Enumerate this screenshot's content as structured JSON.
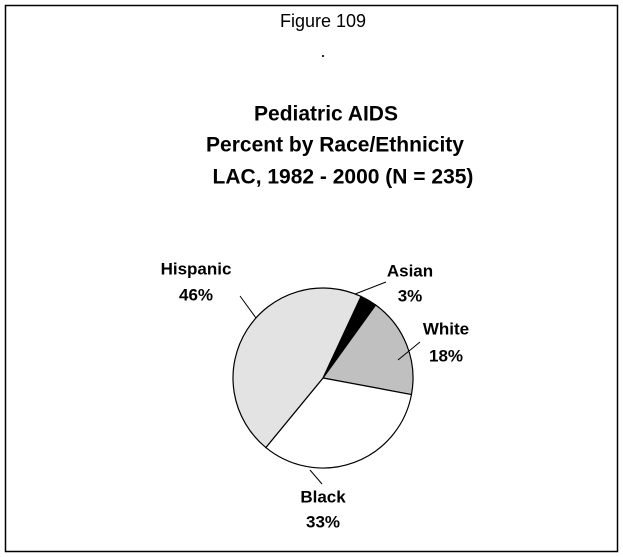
{
  "chart_data": {
    "type": "pie",
    "figure_label": "Figure 109",
    "note": ".",
    "title": [
      "Pediatric AIDS",
      "Percent by Race/Ethnicity",
      "LAC, 1982 - 2000  (N = 235)"
    ],
    "categories": [
      "Asian",
      "White",
      "Black",
      "Hispanic"
    ],
    "values": [
      3,
      18,
      33,
      46
    ],
    "value_labels": [
      "3%",
      "18%",
      "33%",
      "46%"
    ],
    "colors": [
      "#000000",
      "#c0c0c0",
      "#ffffff",
      "#e3e3e3"
    ]
  }
}
